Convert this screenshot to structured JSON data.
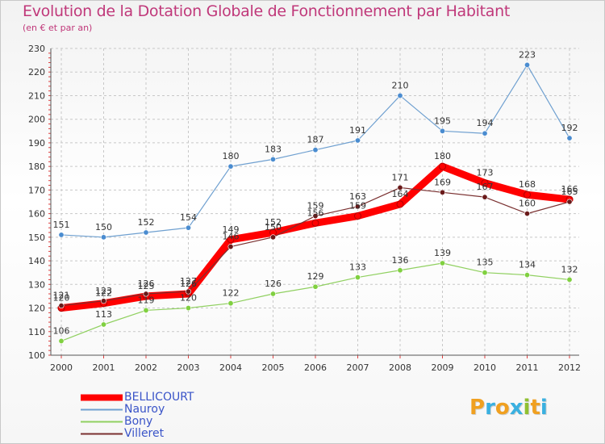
{
  "chart_data": {
    "type": "line",
    "title": "Evolution de la Dotation Globale de Fonctionnement par Habitant",
    "subtitle": "(en € et par an)",
    "categories": [
      "2000",
      "2001",
      "2002",
      "2003",
      "2004",
      "2005",
      "2006",
      "2007",
      "2008",
      "2009",
      "2010",
      "2011",
      "2012"
    ],
    "ylim": [
      100,
      230
    ],
    "yticks": [
      100,
      110,
      120,
      130,
      140,
      150,
      160,
      170,
      180,
      190,
      200,
      210,
      220,
      230
    ],
    "grid": true,
    "series": [
      {
        "name": "BELLICOURT",
        "color": "#ff0000",
        "values": [
          120,
          122,
          125,
          126,
          149,
          152,
          156,
          159,
          164,
          180,
          173,
          168,
          166
        ]
      },
      {
        "name": "Nauroy",
        "color": "#6fa0d0",
        "values": [
          151,
          150,
          152,
          154,
          180,
          183,
          187,
          191,
          210,
          195,
          194,
          223,
          192
        ]
      },
      {
        "name": "Bony",
        "color": "#90d060",
        "values": [
          106,
          113,
          119,
          120,
          122,
          126,
          129,
          133,
          136,
          139,
          135,
          134,
          132
        ]
      },
      {
        "name": "Villeret",
        "color": "#7a3030",
        "values": [
          121,
          123,
          126,
          127,
          146,
          150,
          159,
          163,
          171,
          169,
          167,
          160,
          165
        ]
      }
    ]
  },
  "legend": [
    {
      "label": "BELLICOURT",
      "color": "#ff0000"
    },
    {
      "label": "Nauroy",
      "color": "#6fa0d0"
    },
    {
      "label": "Bony",
      "color": "#90d060"
    },
    {
      "label": "Villeret",
      "color": "#7a3030"
    }
  ],
  "logo": {
    "letters": [
      {
        "ch": "P",
        "color": "#f0a020"
      },
      {
        "ch": "r",
        "color": "#3ab0e0"
      },
      {
        "ch": "o",
        "color": "#f0a020"
      },
      {
        "ch": "x",
        "color": "#3ab0e0"
      },
      {
        "ch": "i",
        "color": "#90c030"
      },
      {
        "ch": "t",
        "color": "#f0a020"
      },
      {
        "ch": "i",
        "color": "#3ab0e0"
      }
    ]
  }
}
